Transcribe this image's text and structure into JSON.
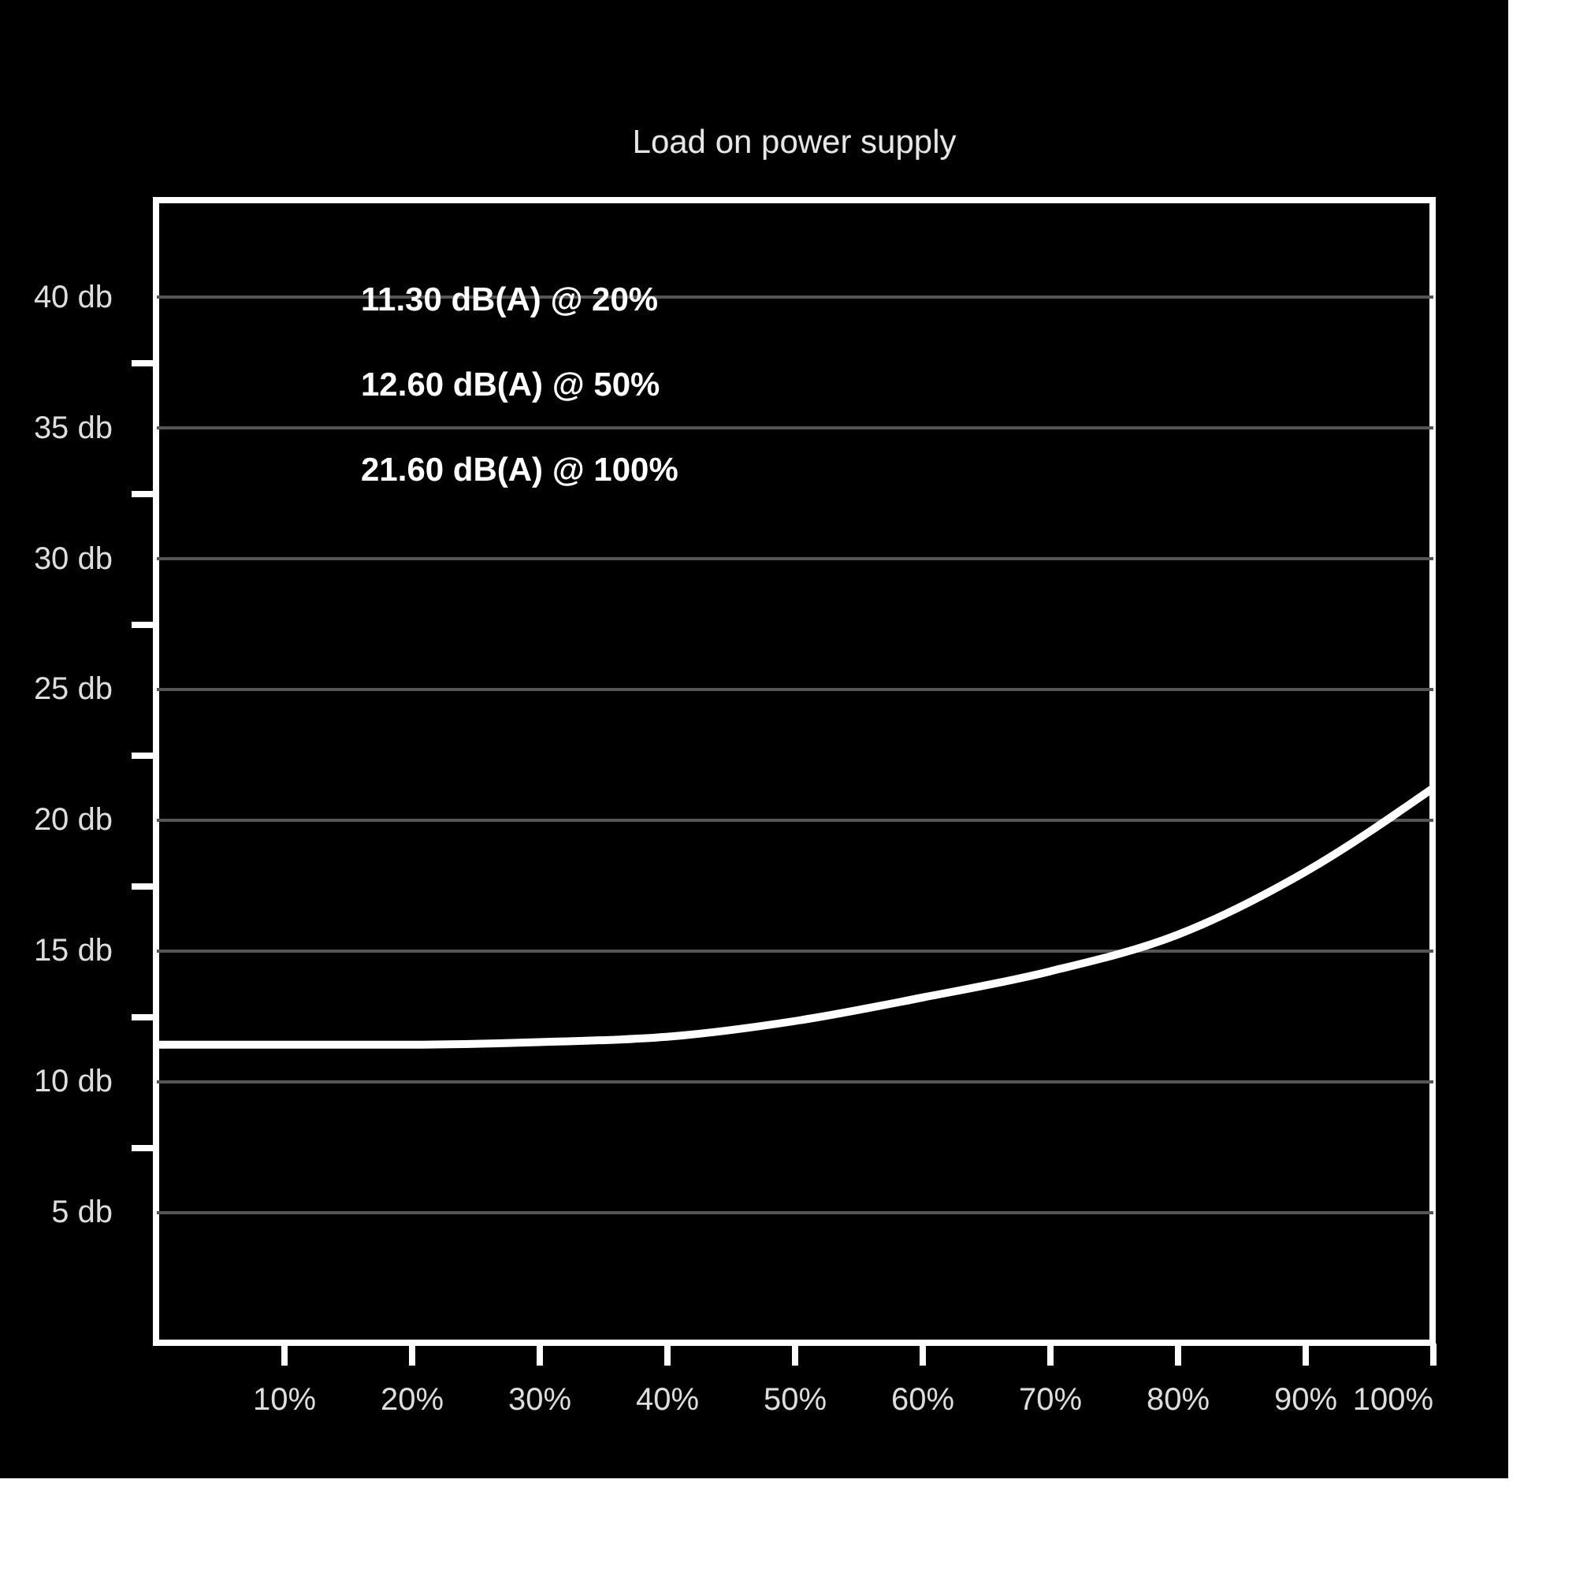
{
  "chart_data": {
    "type": "line",
    "title": "Load on power supply",
    "x": [
      0,
      10,
      20,
      30,
      40,
      50,
      60,
      70,
      80,
      90,
      100
    ],
    "series": [
      {
        "color": "#ffffff",
        "values": [
          11.4,
          11.4,
          11.4,
          11.5,
          11.7,
          12.3,
          13.2,
          14.2,
          15.6,
          18.0,
          21.2
        ]
      }
    ],
    "xlim": [
      0,
      100
    ],
    "xticks": [
      {
        "value": 10,
        "label": "10%"
      },
      {
        "value": 20,
        "label": "20%"
      },
      {
        "value": 30,
        "label": "30%"
      },
      {
        "value": 40,
        "label": "40%"
      },
      {
        "value": 50,
        "label": "50%"
      },
      {
        "value": 60,
        "label": "60%"
      },
      {
        "value": 70,
        "label": "70%"
      },
      {
        "value": 80,
        "label": "80%"
      },
      {
        "value": 90,
        "label": "90%"
      },
      {
        "value": 100,
        "label": "100%"
      }
    ],
    "ylim": [
      0,
      43.7
    ],
    "yticks": [
      {
        "value": 5,
        "label": "5 db"
      },
      {
        "value": 7.5,
        "label": null
      },
      {
        "value": 10,
        "label": "10 db"
      },
      {
        "value": 12.5,
        "label": null
      },
      {
        "value": 15,
        "label": "15 db"
      },
      {
        "value": 17.5,
        "label": null
      },
      {
        "value": 20,
        "label": "20 db"
      },
      {
        "value": 22.5,
        "label": null
      },
      {
        "value": 25,
        "label": "25 db"
      },
      {
        "value": 27.5,
        "label": null
      },
      {
        "value": 30,
        "label": "30 db"
      },
      {
        "value": 32.5,
        "label": null
      },
      {
        "value": 35,
        "label": "35 db"
      },
      {
        "value": 37.5,
        "label": null
      },
      {
        "value": 40,
        "label": "40 db"
      }
    ],
    "grid": "y",
    "marker": "none",
    "line_style": "solid",
    "annotations": [
      "11.30 dB(A) @ 20%",
      "12.60 dB(A) @ 50%",
      "21.60 dB(A) @ 100%"
    ]
  }
}
